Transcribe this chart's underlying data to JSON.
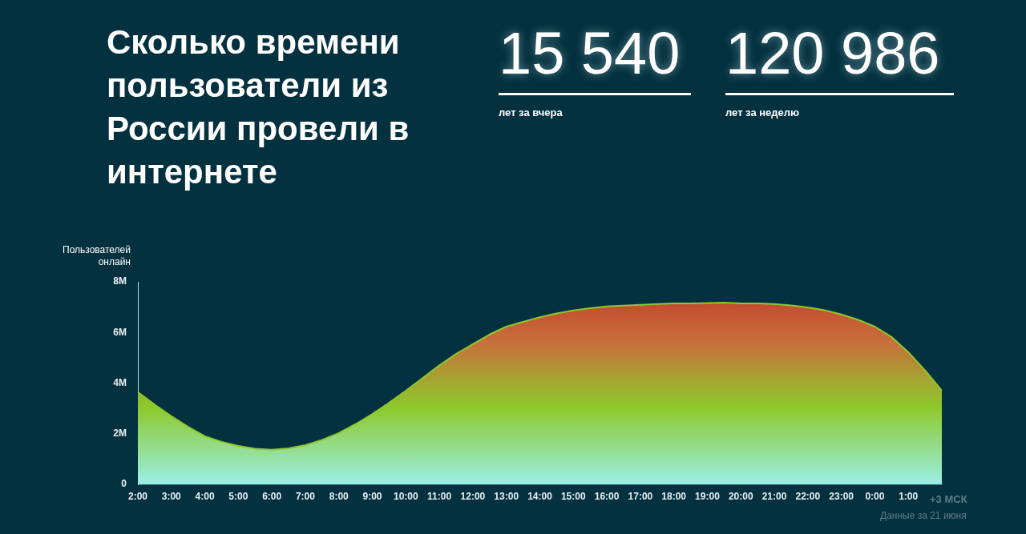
{
  "chart_data": {
    "type": "area",
    "title": "Сколько времени пользователи из России провели в интернете",
    "ylabel": "Пользователей онлайн",
    "annotations": [
      "15 540",
      "лет за вчера",
      "120 986",
      "лет за неделю",
      "+3 МСК",
      "Данные за 21 июня"
    ],
    "categories": [
      "2:00",
      null,
      "3:00",
      null,
      "4:00",
      null,
      "5:00",
      null,
      "6:00",
      null,
      "7:00",
      null,
      "8:00",
      null,
      "9:00",
      null,
      "10:00",
      null,
      "11:00",
      null,
      "12:00",
      null,
      "13:00",
      null,
      "14:00",
      null,
      "15:00",
      null,
      "16:00",
      null,
      "17:00",
      null,
      "18:00",
      null,
      "19:00",
      null,
      "20:00",
      null,
      "21:00",
      null,
      "22:00",
      null,
      "23:00",
      null,
      "0:00",
      null,
      "1:00",
      null,
      null
    ],
    "series": [
      {
        "color": "#8dc92b",
        "values": [
          3.64,
          3.15,
          2.69,
          2.27,
          1.9,
          1.68,
          1.52,
          1.41,
          1.37,
          1.42,
          1.55,
          1.76,
          2.03,
          2.38,
          2.78,
          3.22,
          3.7,
          4.2,
          4.7,
          5.15,
          5.54,
          5.92,
          6.23,
          6.42,
          6.6,
          6.75,
          6.87,
          6.96,
          7.03,
          7.06,
          7.09,
          7.12,
          7.15,
          7.15,
          7.16,
          7.18,
          7.15,
          7.15,
          7.12,
          7.07,
          6.99,
          6.88,
          6.71,
          6.5,
          6.23,
          5.82,
          5.22,
          4.5,
          3.7
        ]
      }
    ],
    "ylim": [
      0,
      8
    ],
    "yticks": [
      0,
      {
        "value": 2,
        "label": "2M"
      },
      {
        "value": 4,
        "label": "4M"
      },
      {
        "value": 6,
        "label": "6M"
      },
      {
        "value": 8,
        "label": "8M"
      }
    ],
    "grid": false,
    "legend": false
  }
}
